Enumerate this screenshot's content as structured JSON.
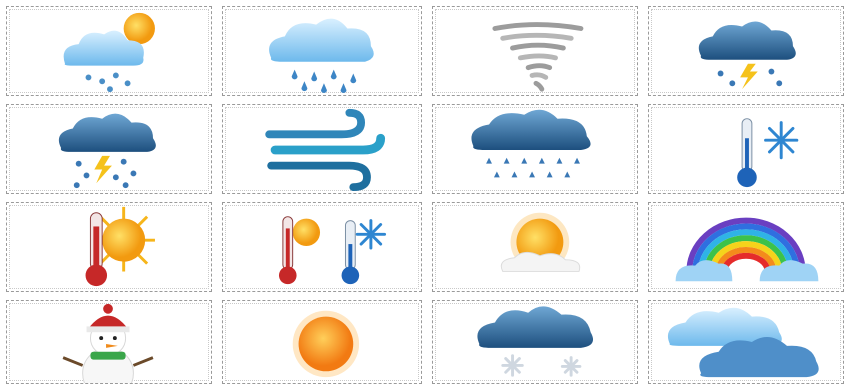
{
  "tiles": [
    {
      "icon": "sun-behind-rain-cloud-icon"
    },
    {
      "icon": "rain-cloud-icon"
    },
    {
      "icon": "tornado-icon"
    },
    {
      "icon": "thunderstorm-cloud-icon"
    },
    {
      "icon": "thunder-hail-cloud-icon"
    },
    {
      "icon": "wind-icon"
    },
    {
      "icon": "hail-cloud-icon"
    },
    {
      "icon": "cold-thermometer-snowflake-icon"
    },
    {
      "icon": "hot-thermometer-sun-icon"
    },
    {
      "icon": "hot-and-cold-thermometers-icon"
    },
    {
      "icon": "sun-behind-cloud-icon"
    },
    {
      "icon": "rainbow-icon"
    },
    {
      "icon": "snowman-icon"
    },
    {
      "icon": "sun-icon"
    },
    {
      "icon": "snow-cloud-icon"
    },
    {
      "icon": "overcast-clouds-icon"
    }
  ],
  "colors": {
    "cloud_light": "#9fd3f5",
    "cloud_dark": "#2f6ea3",
    "sun": "#f6a21a",
    "thermo_hot": "#c62828",
    "thermo_cold": "#1e63b8",
    "tile_border": "#9a9a9a"
  }
}
